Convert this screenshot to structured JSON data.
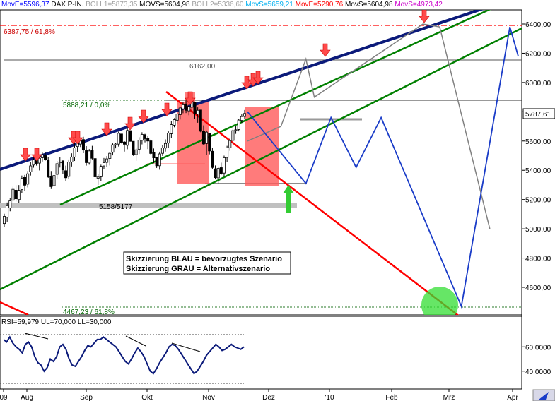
{
  "header": {
    "items": [
      {
        "text": "MovE=5596,37",
        "color": "#0000ff"
      },
      {
        "text": "DAX P-IN.",
        "color": "#000000"
      },
      {
        "text": "BOLL1=5873,35",
        "color": "#a0a0a0"
      },
      {
        "text": "MOVS=5604,98",
        "color": "#000000"
      },
      {
        "text": "BOLL2=5336,60",
        "color": "#a0a0a0"
      },
      {
        "text": "MovS=5659,21",
        "color": "#00b0f0"
      },
      {
        "text": "MovE=5290,76",
        "color": "#ff0000"
      },
      {
        "text": "MovS=5604,98",
        "color": "#000000"
      },
      {
        "text": "MovS=4973,42",
        "color": "#cc00cc"
      }
    ]
  },
  "price_panel": {
    "y_ticks": [
      "6400,00",
      "6200,00",
      "6000,00",
      "5800,00",
      "5600,00",
      "5400,00",
      "5200,00",
      "5000,00",
      "4800,00",
      "4600,00"
    ],
    "current_price_label": "5787,61",
    "annotations": {
      "fib_high": "6387,75 / 61,8%",
      "level_6162": "6162,00",
      "fib_zero": "5888,21 / 0,0%",
      "support_zone": "5158/5177",
      "fib_low": "4467,23 / 61,8%"
    },
    "legend_box": {
      "line1": "Skizzierung BLAU = bevorzugtes Szenario",
      "line2": "Skizzierung GRAU = Alternativszenario"
    }
  },
  "rsi_panel": {
    "label": "RSI=59,979 UL=70,000 LL=30,000",
    "y_ticks": [
      "60,0000",
      "40,0000"
    ]
  },
  "x_axis": {
    "labels": [
      "09",
      "Aug",
      "Sep",
      "Okt",
      "Nov",
      "Dez",
      "'10",
      "Feb",
      "Mrz",
      "Apr"
    ]
  },
  "colors": {
    "trend_channel": "#008000",
    "long_trendline": "#0b1a7a",
    "down_trendline": "#ff0000",
    "preferred_scenario": "#1a3cc8",
    "alternative_scenario": "#808080",
    "highlight_boxes": "#ff6a6a",
    "signal_arrow_down": "#ff4040",
    "signal_arrow_up": "#33cc33"
  },
  "chart_data": {
    "type": "line",
    "y_range": [
      4420,
      6500
    ],
    "x_labels": [
      "09",
      "Aug",
      "Sep",
      "Okt",
      "Nov",
      "Dez",
      "'10",
      "Feb",
      "Mrz",
      "Apr"
    ],
    "candles": [
      [
        5036,
        5103,
        5011,
        5085
      ],
      [
        5079,
        5180,
        5049,
        5158
      ],
      [
        5143,
        5210,
        5120,
        5191
      ],
      [
        5195,
        5288,
        5175,
        5270
      ],
      [
        5264,
        5298,
        5186,
        5205
      ],
      [
        5200,
        5299,
        5177,
        5263
      ],
      [
        5268,
        5364,
        5246,
        5344
      ],
      [
        5351,
        5368,
        5260,
        5298
      ],
      [
        5305,
        5395,
        5283,
        5376
      ],
      [
        5389,
        5456,
        5364,
        5430
      ],
      [
        5436,
        5487,
        5418,
        5471
      ],
      [
        5476,
        5518,
        5432,
        5442
      ],
      [
        5449,
        5506,
        5399,
        5482
      ],
      [
        5486,
        5521,
        5460,
        5507
      ],
      [
        5500,
        5525,
        5466,
        5472
      ],
      [
        5469,
        5492,
        5348,
        5355
      ],
      [
        5359,
        5395,
        5272,
        5288
      ],
      [
        5295,
        5386,
        5262,
        5364
      ],
      [
        5372,
        5464,
        5342,
        5445
      ],
      [
        5451,
        5489,
        5419,
        5457
      ],
      [
        5465,
        5463,
        5376,
        5403
      ],
      [
        5397,
        5432,
        5325,
        5349
      ],
      [
        5358,
        5474,
        5342,
        5456
      ],
      [
        5457,
        5516,
        5426,
        5491
      ],
      [
        5491,
        5584,
        5464,
        5553
      ],
      [
        5562,
        5612,
        5524,
        5588
      ],
      [
        5579,
        5616,
        5559,
        5602
      ],
      [
        5610,
        5629,
        5517,
        5538
      ],
      [
        5534,
        5565,
        5432,
        5452
      ],
      [
        5450,
        5545,
        5438,
        5532
      ],
      [
        5535,
        5567,
        5474,
        5482
      ],
      [
        5480,
        5483,
        5341,
        5355
      ],
      [
        5346,
        5374,
        5300,
        5354
      ],
      [
        5356,
        5438,
        5328,
        5427
      ],
      [
        5430,
        5484,
        5409,
        5452
      ],
      [
        5454,
        5497,
        5422,
        5478
      ],
      [
        5481,
        5524,
        5433,
        5516
      ],
      [
        5523,
        5584,
        5502,
        5574
      ],
      [
        5573,
        5587,
        5550,
        5579
      ],
      [
        5579,
        5664,
        5562,
        5653
      ],
      [
        5648,
        5643,
        5583,
        5591
      ],
      [
        5593,
        5599,
        5528,
        5578
      ],
      [
        5571,
        5686,
        5544,
        5672
      ],
      [
        5671,
        5666,
        5596,
        5598
      ],
      [
        5598,
        5598,
        5499,
        5509
      ],
      [
        5507,
        5556,
        5465,
        5540
      ],
      [
        5544,
        5626,
        5511,
        5606
      ],
      [
        5605,
        5660,
        5577,
        5645
      ],
      [
        5643,
        5649,
        5591,
        5616
      ],
      [
        5617,
        5635,
        5545,
        5600
      ],
      [
        5601,
        5610,
        5505,
        5515
      ],
      [
        5520,
        5549,
        5448,
        5485
      ],
      [
        5490,
        5493,
        5416,
        5431
      ],
      [
        5431,
        5527,
        5404,
        5512
      ],
      [
        5516,
        5571,
        5498,
        5553
      ],
      [
        5552,
        5611,
        5528,
        5583
      ],
      [
        5586,
        5668,
        5551,
        5655
      ],
      [
        5650,
        5736,
        5620,
        5712
      ],
      [
        5708,
        5756,
        5694,
        5746
      ],
      [
        5742,
        5790,
        5720,
        5785
      ],
      [
        5780,
        5834,
        5747,
        5826
      ],
      [
        5820,
        5864,
        5790,
        5848
      ],
      [
        5853,
        5880,
        5791,
        5810
      ],
      [
        5806,
        5854,
        5776,
        5837
      ],
      [
        5831,
        5889,
        5793,
        5872
      ],
      [
        5866,
        5850,
        5753,
        5784
      ],
      [
        5784,
        5830,
        5725,
        5810
      ],
      [
        5812,
        5797,
        5660,
        5667
      ],
      [
        5667,
        5707,
        5573,
        5580
      ],
      [
        5583,
        5672,
        5505,
        5661
      ],
      [
        5654,
        5656,
        5509,
        5532
      ],
      [
        5530,
        5555,
        5407,
        5419
      ],
      [
        5410,
        5433,
        5338,
        5350
      ],
      [
        5348,
        5426,
        5311,
        5413
      ],
      [
        5418,
        5452,
        5369,
        5379
      ],
      [
        5381,
        5500,
        5359,
        5486
      ],
      [
        5488,
        5567,
        5456,
        5553
      ],
      [
        5554,
        5623,
        5533,
        5603
      ],
      [
        5604,
        5683,
        5578,
        5671
      ],
      [
        5672,
        5705,
        5649,
        5677
      ],
      [
        5679,
        5749,
        5666,
        5743
      ],
      [
        5741,
        5782,
        5723,
        5767
      ],
      [
        5768,
        5812,
        5748,
        5788
      ]
    ],
    "preferred_scenario_path": [
      [
        5780,
        5800
      ],
      [
        5815,
        5310
      ],
      [
        5830,
        5760
      ],
      [
        5845,
        5420
      ],
      [
        5860,
        5760
      ],
      [
        5908,
        4470
      ],
      [
        5937,
        6380
      ],
      [
        5942,
        6180
      ]
    ],
    "alternative_scenario_path": [
      [
        5780,
        5600
      ],
      [
        5800,
        5700
      ],
      [
        5815,
        6160
      ],
      [
        5820,
        5900
      ],
      [
        5885,
        6400
      ],
      [
        5895,
        6380
      ],
      [
        5925,
        5000
      ]
    ],
    "rsi_series": [
      66,
      64,
      68,
      63,
      60,
      58,
      55,
      62,
      64,
      60,
      52,
      47,
      45,
      40,
      43,
      50,
      48,
      52,
      60,
      62,
      58,
      50,
      45,
      44,
      48,
      52,
      57,
      61,
      60,
      63,
      66,
      66,
      68,
      66,
      64,
      62,
      60,
      56,
      52,
      48,
      46,
      50,
      55,
      59,
      56,
      52,
      46,
      40,
      38,
      42,
      47,
      51,
      55,
      60,
      62,
      61,
      58,
      54,
      50,
      46,
      42,
      38,
      40,
      44,
      48,
      53,
      56,
      59,
      62,
      60,
      57,
      58,
      60,
      62,
      60,
      59,
      58,
      60
    ],
    "rsi_levels": {
      "upper": 70,
      "lower": 30
    }
  }
}
